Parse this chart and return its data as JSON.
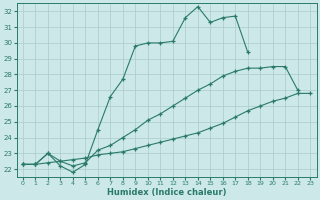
{
  "xlabel": "Humidex (Indice chaleur)",
  "xlim": [
    -0.5,
    23.5
  ],
  "ylim": [
    21.5,
    32.5
  ],
  "xticks": [
    0,
    1,
    2,
    3,
    4,
    5,
    6,
    7,
    8,
    9,
    10,
    11,
    12,
    13,
    14,
    15,
    16,
    17,
    18,
    19,
    20,
    21,
    22,
    23
  ],
  "yticks": [
    22,
    23,
    24,
    25,
    26,
    27,
    28,
    29,
    30,
    31,
    32
  ],
  "bg_color": "#cce8e8",
  "grid_color": "#aacccc",
  "line_color": "#2a7a6a",
  "line1_x": [
    0,
    1,
    2,
    3,
    4,
    5,
    6,
    7,
    8,
    9,
    10,
    11,
    12,
    13,
    14,
    15,
    16,
    17,
    18
  ],
  "line1_y": [
    22.3,
    22.3,
    23.0,
    22.2,
    21.8,
    22.3,
    24.5,
    26.6,
    27.7,
    29.8,
    30.0,
    30.0,
    30.1,
    31.6,
    32.3,
    31.3,
    31.6,
    31.7,
    29.4
  ],
  "line2_x": [
    0,
    1,
    2,
    3,
    4,
    5,
    6,
    7,
    8,
    9,
    10,
    11,
    12,
    13,
    14,
    15,
    16,
    17,
    18,
    19,
    20,
    21,
    22
  ],
  "line2_y": [
    22.3,
    22.3,
    23.0,
    22.5,
    22.2,
    22.4,
    23.2,
    23.5,
    24.0,
    24.5,
    25.1,
    25.5,
    26.0,
    26.5,
    27.0,
    27.4,
    27.9,
    28.2,
    28.4,
    28.4,
    28.5,
    28.5,
    27.0
  ],
  "line3_x": [
    0,
    1,
    2,
    3,
    4,
    5,
    6,
    7,
    8,
    9,
    10,
    11,
    12,
    13,
    14,
    15,
    16,
    17,
    18,
    19,
    20,
    21,
    22,
    23
  ],
  "line3_y": [
    22.3,
    22.3,
    22.4,
    22.5,
    22.6,
    22.7,
    22.9,
    23.0,
    23.1,
    23.3,
    23.5,
    23.7,
    23.9,
    24.1,
    24.3,
    24.6,
    24.9,
    25.3,
    25.7,
    26.0,
    26.3,
    26.5,
    26.8,
    26.8
  ]
}
